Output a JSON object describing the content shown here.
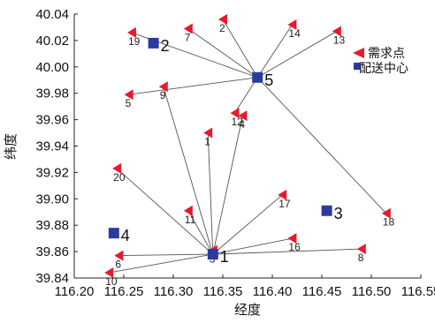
{
  "chart_data": {
    "type": "scatter",
    "xlabel": "经度",
    "ylabel": "纬度",
    "xlim": [
      116.2,
      116.55
    ],
    "ylim": [
      39.84,
      40.04
    ],
    "x_ticks": [
      "116.20",
      "116.25",
      "116.30",
      "116.35",
      "116.40",
      "116.45",
      "116.50",
      "116.55"
    ],
    "y_ticks": [
      "39.84",
      "39.86",
      "39.88",
      "39.90",
      "39.92",
      "39.94",
      "39.96",
      "39.98",
      "40.00",
      "40.02",
      "40.04"
    ],
    "grid": false,
    "legend": {
      "placement": "top-right",
      "entries": [
        {
          "name": "需求点",
          "marker": "triangle",
          "color": "#e8192c"
        },
        {
          "name": "配送中心",
          "marker": "square",
          "color": "#2b3aa0"
        }
      ]
    },
    "series": [
      {
        "name": "需求点",
        "marker": "triangle",
        "color": "#e8192c",
        "points": [
          {
            "label": "1",
            "x": 116.335,
            "y": 39.95
          },
          {
            "label": "2",
            "x": 116.35,
            "y": 40.036
          },
          {
            "label": "3",
            "x": 116.34,
            "y": 39.861
          },
          {
            "label": "4",
            "x": 116.37,
            "y": 39.963
          },
          {
            "label": "5",
            "x": 116.255,
            "y": 39.979
          },
          {
            "label": "6",
            "x": 116.245,
            "y": 39.857
          },
          {
            "label": "7",
            "x": 116.315,
            "y": 40.029
          },
          {
            "label": "8",
            "x": 116.49,
            "y": 39.862
          },
          {
            "label": "9",
            "x": 116.29,
            "y": 39.985
          },
          {
            "label": "10",
            "x": 116.235,
            "y": 39.844
          },
          {
            "label": "11",
            "x": 116.315,
            "y": 39.891
          },
          {
            "label": "12",
            "x": 116.362,
            "y": 39.965
          },
          {
            "label": "13",
            "x": 116.465,
            "y": 40.027
          },
          {
            "label": "14",
            "x": 116.42,
            "y": 40.032
          },
          {
            "label": "16",
            "x": 116.42,
            "y": 39.87
          },
          {
            "label": "17",
            "x": 116.41,
            "y": 39.903
          },
          {
            "label": "18",
            "x": 116.515,
            "y": 39.889
          },
          {
            "label": "19",
            "x": 116.258,
            "y": 40.026
          },
          {
            "label": "20",
            "x": 116.243,
            "y": 39.923
          }
        ]
      },
      {
        "name": "配送中心",
        "marker": "square",
        "color": "#2b3aa0",
        "points": [
          {
            "label": "1",
            "x": 116.34,
            "y": 39.858
          },
          {
            "label": "2",
            "x": 116.28,
            "y": 40.018
          },
          {
            "label": "3",
            "x": 116.455,
            "y": 39.891
          },
          {
            "label": "4",
            "x": 116.24,
            "y": 39.874
          },
          {
            "label": "5",
            "x": 116.385,
            "y": 39.992
          }
        ]
      }
    ],
    "routes": [
      {
        "center": "1",
        "demand": [
          "1",
          "3",
          "4",
          "6",
          "8",
          "9",
          "10",
          "11",
          "16",
          "17",
          "20"
        ]
      },
      {
        "center": "5",
        "demand": [
          "2",
          "5",
          "7",
          "12",
          "13",
          "14",
          "18",
          "19"
        ]
      }
    ]
  }
}
